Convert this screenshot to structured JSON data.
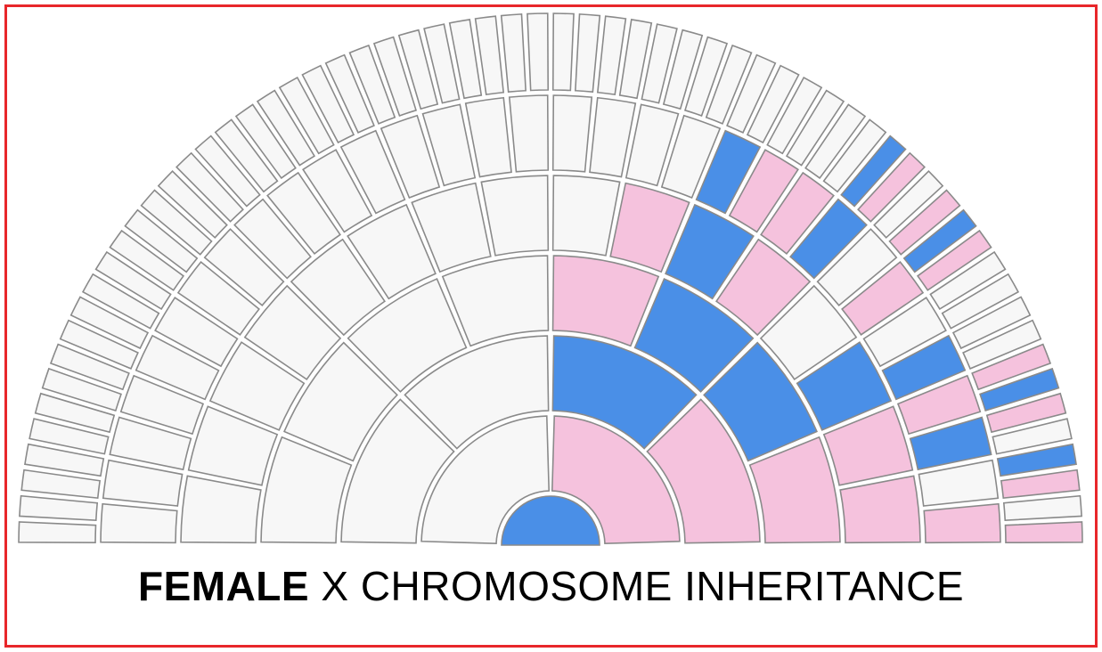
{
  "title": {
    "emphasis": "FEMALE",
    "rest": " X CHROMOSOME INHERITANCE"
  },
  "colors": {
    "frame": "#e8262a",
    "male": "#4a8fe7",
    "female": "#f5c2dd",
    "none": "#f7f7f7",
    "stroke": "#8a8a8a"
  },
  "legend_map": {
    "M": "male",
    "F": "female",
    "N": "none"
  },
  "generations": [
    [
      "M"
    ],
    [
      "N",
      "F"
    ],
    [
      "N",
      "N",
      "M",
      "F"
    ],
    [
      "N",
      "N",
      "N",
      "N",
      "F",
      "M",
      "M",
      "F"
    ],
    [
      "N",
      "N",
      "N",
      "N",
      "N",
      "N",
      "N",
      "N",
      "N",
      "F",
      "M",
      "F",
      "N",
      "M",
      "F",
      "F"
    ],
    [
      "N",
      "N",
      "N",
      "N",
      "N",
      "N",
      "N",
      "N",
      "N",
      "N",
      "N",
      "N",
      "N",
      "N",
      "N",
      "N",
      "N",
      "N",
      "N",
      "N",
      "M",
      "F",
      "F",
      "M",
      "N",
      "F",
      "N",
      "M",
      "F",
      "M",
      "N",
      "F"
    ],
    [
      "N",
      "N",
      "N",
      "N",
      "N",
      "N",
      "N",
      "N",
      "N",
      "N",
      "N",
      "N",
      "N",
      "N",
      "N",
      "N",
      "N",
      "N",
      "N",
      "N",
      "N",
      "N",
      "N",
      "N",
      "N",
      "N",
      "N",
      "N",
      "N",
      "N",
      "N",
      "N",
      "N",
      "N",
      "N",
      "N",
      "N",
      "N",
      "N",
      "N",
      "N",
      "N",
      "N",
      "N",
      "N",
      "N",
      "M",
      "F",
      "N",
      "F",
      "M",
      "F",
      "N",
      "N",
      "N",
      "N",
      "F",
      "M",
      "F",
      "N",
      "M",
      "F",
      "N",
      "F"
    ]
  ]
}
